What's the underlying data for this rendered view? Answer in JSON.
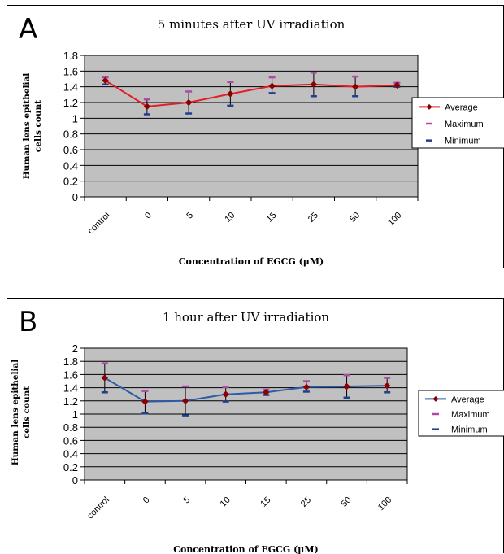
{
  "chart_data": [
    {
      "type": "line",
      "panel_letter": "A",
      "title": "5 minutes after UV irradiation",
      "xlabel": "Concentration of EGCG (μM)",
      "ylabel_lines": [
        "Human lens epithelial",
        "cells count"
      ],
      "categories": [
        "control",
        "0",
        "5",
        "10",
        "15",
        "25",
        "50",
        "100"
      ],
      "ylim": [
        0,
        1.8
      ],
      "yticks": [
        "0",
        "0.2",
        "0.4",
        "0.6",
        "0.8",
        "1",
        "1.2",
        "1.4",
        "1.6",
        "1.8"
      ],
      "grid": true,
      "legend_position": "right",
      "series": [
        {
          "name": "Average",
          "color": "#e31e24",
          "values": [
            1.48,
            1.15,
            1.2,
            1.31,
            1.41,
            1.43,
            1.4,
            1.42
          ]
        },
        {
          "name": "Maximum",
          "color": "#b048a8",
          "values": [
            1.52,
            1.24,
            1.34,
            1.46,
            1.52,
            1.58,
            1.53,
            1.45
          ]
        },
        {
          "name": "Minimum",
          "color": "#1f3f8f",
          "values": [
            1.43,
            1.05,
            1.06,
            1.16,
            1.32,
            1.28,
            1.28,
            1.4
          ]
        }
      ]
    },
    {
      "type": "line",
      "panel_letter": "B",
      "title": "1 hour after UV irradiation",
      "xlabel": "Concentration of EGCG (μM)",
      "ylabel_lines": [
        "Human lens epithelial",
        "cells count"
      ],
      "categories": [
        "control",
        "0",
        "5",
        "10",
        "15",
        "25",
        "50",
        "100"
      ],
      "ylim": [
        0,
        2
      ],
      "yticks": [
        "0",
        "0.2",
        "0.4",
        "0.6",
        "0.8",
        "1",
        "1.2",
        "1.4",
        "1.6",
        "1.8",
        "2"
      ],
      "grid": true,
      "legend_position": "right",
      "series": [
        {
          "name": "Average",
          "color": "#2e5aa8",
          "values": [
            1.55,
            1.19,
            1.2,
            1.3,
            1.33,
            1.41,
            1.42,
            1.43
          ]
        },
        {
          "name": "Maximum",
          "color": "#b048a8",
          "values": [
            1.77,
            1.35,
            1.42,
            1.41,
            1.37,
            1.5,
            1.59,
            1.55
          ]
        },
        {
          "name": "Minimum",
          "color": "#1f3f8f",
          "values": [
            1.33,
            1.01,
            0.98,
            1.19,
            1.29,
            1.34,
            1.25,
            1.33
          ]
        }
      ]
    }
  ]
}
